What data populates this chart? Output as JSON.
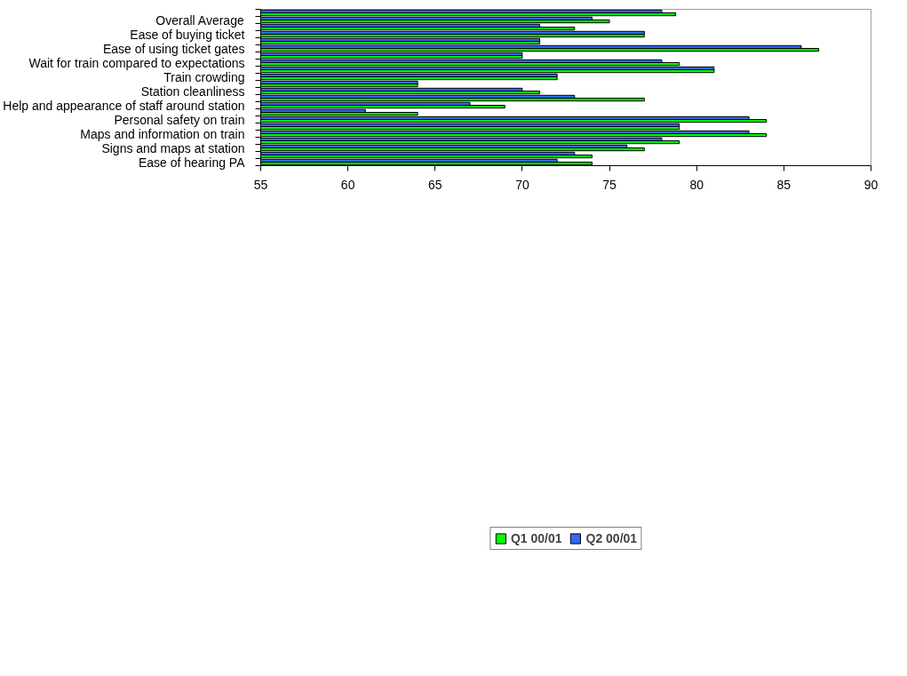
{
  "chart_data": {
    "type": "bar",
    "orientation": "horizontal",
    "categories": [
      null,
      "Overall Average",
      null,
      "Ease of buying ticket",
      null,
      "Ease of using ticket gates",
      null,
      "Wait for train compared to expectations",
      null,
      "Train crowding",
      null,
      "Station cleanliness",
      null,
      "Help and appearance of staff around station",
      null,
      "Personal safety on train",
      null,
      "Maps and information on train",
      null,
      "Signs and maps at station",
      null,
      "Ease of hearing PA"
    ],
    "series": [
      {
        "name": "Q1 00/01",
        "color": "#00ff00",
        "values": [
          78.8,
          75,
          73,
          77,
          71,
          87,
          70,
          79,
          81,
          72,
          64,
          71,
          77,
          69,
          64,
          84,
          79,
          84,
          79,
          77,
          74,
          74
        ]
      },
      {
        "name": "Q2 00/01",
        "color": "#3366ff",
        "values": [
          78,
          74,
          71,
          77,
          71,
          86,
          70,
          78,
          81,
          72,
          64,
          70,
          73,
          67,
          61,
          83,
          79,
          83,
          78,
          76,
          73,
          72
        ]
      }
    ],
    "xlim": [
      55,
      90
    ],
    "xticks": [
      55,
      60,
      65,
      70,
      75,
      80,
      85,
      90
    ],
    "grid": false,
    "legend": "bottom"
  }
}
